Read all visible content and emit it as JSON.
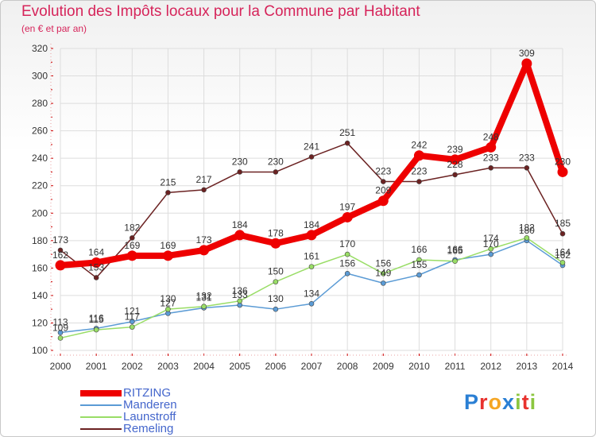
{
  "title": "Evolution des Impôts locaux pour la Commune par Habitant",
  "subtitle": "(en € et par an)",
  "logo_text": "Proxiti",
  "chart_data": {
    "type": "line",
    "title": "Evolution des Impôts locaux pour la Commune par Habitant",
    "ylabel": "(en € et par an)",
    "xlabel": "",
    "ylim": [
      100,
      320
    ],
    "yticks": [
      100,
      120,
      140,
      160,
      180,
      200,
      220,
      240,
      260,
      280,
      300,
      320
    ],
    "categories": [
      "2000",
      "2001",
      "2002",
      "2003",
      "2004",
      "2005",
      "2006",
      "2007",
      "2008",
      "2009",
      "2010",
      "2011",
      "2012",
      "2013",
      "2014"
    ],
    "grid": true,
    "legend_position": "bottom-left",
    "series": [
      {
        "name": "RITZING",
        "color": "#ee0000",
        "emphasis": true,
        "values": [
          162,
          164,
          169,
          169,
          173,
          184,
          178,
          184,
          197,
          209,
          242,
          239,
          248,
          309,
          230
        ]
      },
      {
        "name": "Manderen",
        "color": "#5b9bd5",
        "emphasis": false,
        "values": [
          113,
          116,
          121,
          127,
          131,
          133,
          130,
          134,
          156,
          149,
          155,
          166,
          170,
          180,
          162
        ]
      },
      {
        "name": "Launstroff",
        "color": "#99dd66",
        "emphasis": false,
        "values": [
          109,
          115,
          117,
          130,
          132,
          136,
          150,
          161,
          170,
          156,
          166,
          165,
          174,
          182,
          164
        ]
      },
      {
        "name": "Remeling",
        "color": "#6b2222",
        "emphasis": false,
        "values": [
          173,
          153,
          182,
          215,
          217,
          230,
          230,
          241,
          251,
          223,
          223,
          228,
          233,
          233,
          185
        ]
      }
    ]
  }
}
